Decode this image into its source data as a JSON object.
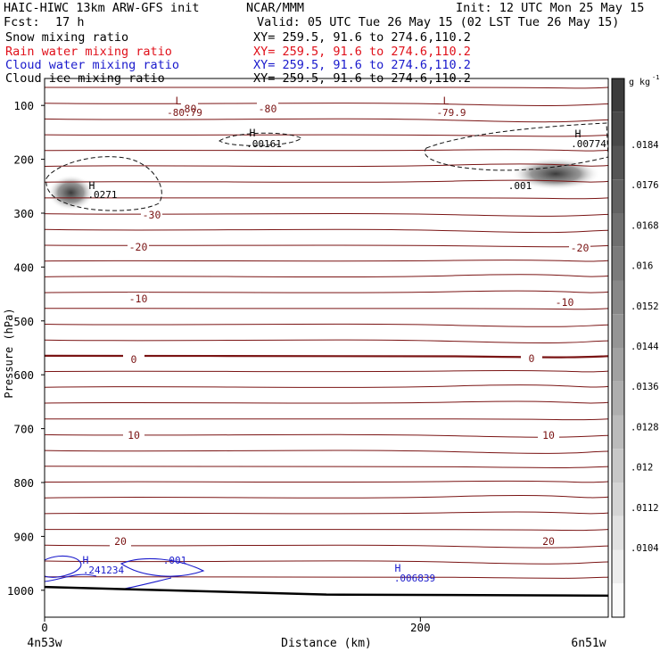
{
  "header": {
    "model": "HAIC-HIWC 13km ARW-GFS init",
    "org": "NCAR/MMM",
    "init": "Init: 12 UTC Mon 25 May 15",
    "fcst_label": "Fcst:",
    "fcst_value": "17 h",
    "valid": "Valid: 05 UTC Tue 26 May 15 (02 LST Tue 26 May 15)"
  },
  "fields": [
    {
      "name": "Snow mixing ratio",
      "xy": "XY= 259.5, 91.6 to 274.6,110.2",
      "color": "#000000"
    },
    {
      "name": "Rain water mixing ratio",
      "xy": "XY= 259.5, 91.6 to 274.6,110.2",
      "color": "#e0101a"
    },
    {
      "name": "Cloud water mixing ratio",
      "xy": "XY= 259.5, 91.6 to 274.6,110.2",
      "color": "#1a1acc"
    },
    {
      "name": "Cloud ice mixing ratio",
      "xy": "XY= 259.5, 91.6 to 274.6,110.2",
      "color": "#000000"
    }
  ],
  "colorbar": {
    "unit": "g kg",
    "unit_exp": "-1",
    "ticks": [
      ".0184",
      ".0176",
      ".0168",
      ".016",
      ".0152",
      ".0144",
      ".0136",
      ".0128",
      ".012",
      ".0112",
      ".0104"
    ]
  },
  "chart_data": {
    "type": "cross-section",
    "ylabel": "Pressure (hPa)",
    "xlabel": "Distance (km)",
    "x_left_label": "4n53w",
    "x_right_label": "6n51w",
    "ylim": [
      1050,
      50
    ],
    "xlim": [
      0,
      300
    ],
    "y_ticks": [
      100,
      200,
      300,
      400,
      500,
      600,
      700,
      800,
      900,
      1000
    ],
    "x_ticks": [
      0,
      200
    ],
    "temperature_contours": [
      {
        "label": "-80",
        "at_x": [
          60,
          123
        ]
      },
      {
        "label": "-30",
        "at_x": [
          58
        ]
      },
      {
        "label": "-20",
        "at_x": [
          52,
          297
        ]
      },
      {
        "label": "-10",
        "at_x": [
          52,
          287
        ]
      },
      {
        "label": "0",
        "at_x": [
          50,
          272
        ]
      },
      {
        "label": "10",
        "at_x": [
          50,
          278
        ]
      },
      {
        "label": "20",
        "at_x": [
          42,
          280
        ]
      }
    ],
    "annotations": [
      {
        "mark": "L",
        "value": "-80.79",
        "x": 38,
        "p": 107
      },
      {
        "mark": "L",
        "value": "-79.9",
        "x": 224,
        "p": 107
      },
      {
        "mark": "H",
        "value": ".00161",
        "x": 117,
        "p": 167
      },
      {
        "mark": "H",
        "value": ".00774",
        "x": 296,
        "p": 163
      },
      {
        "mark": "H",
        "value": ".0271",
        "x": 28,
        "p": 258
      },
      {
        "mark": "",
        "value": ".001",
        "x": 262,
        "p": 244
      },
      {
        "mark": "H",
        "value": ".241234",
        "x": 25,
        "p": 954
      },
      {
        "mark": "",
        "value": ".001",
        "x": 75,
        "p": 939
      },
      {
        "mark": "H",
        "value": ".006839",
        "x": 195,
        "p": 960
      }
    ],
    "snow_max": [
      {
        "x": 14,
        "p": 262
      },
      {
        "x": 272,
        "p": 227
      }
    ],
    "terrain": [
      [
        0,
        994
      ],
      [
        150,
        1008
      ],
      [
        300,
        1010
      ]
    ]
  }
}
